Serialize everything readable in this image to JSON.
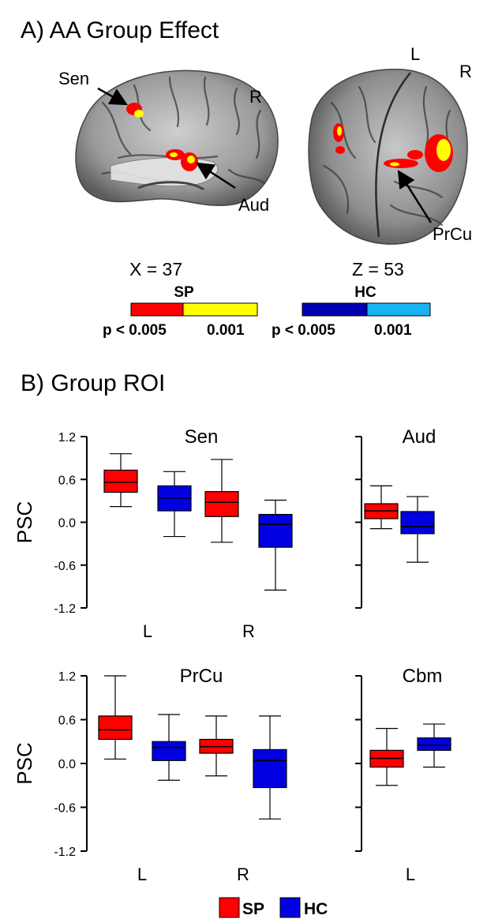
{
  "panel_a": {
    "heading": "A) AA Group Effect",
    "sagittal": {
      "labels": {
        "sen": "Sen",
        "aud": "Aud",
        "r": "R"
      },
      "coord": "X = 37"
    },
    "axial": {
      "labels": {
        "l": "L",
        "r": "R",
        "prcu": "PrCu"
      },
      "coord": "Z = 53"
    },
    "colorbars": [
      {
        "title": "SP",
        "ticks": [
          "p < 0.005",
          "0.001"
        ],
        "colors": [
          "#ff0000",
          "#ffff00"
        ]
      },
      {
        "title": "HC",
        "ticks": [
          "p < 0.005",
          "0.001"
        ],
        "colors": [
          "#0000b0",
          "#18b4f0"
        ]
      }
    ]
  },
  "panel_b": {
    "heading": "B) Group ROI"
  },
  "colors": {
    "SP": "#ff0000",
    "HC": "#0000e0"
  },
  "legend": [
    {
      "label": "SP",
      "color": "#ff0000"
    },
    {
      "label": "HC",
      "color": "#0000e0"
    }
  ],
  "chart_data": [
    {
      "type": "box",
      "title": "Sen",
      "ylabel": "PSC",
      "ylim": [
        -1.2,
        1.2
      ],
      "yticks": [
        "1.2",
        "0.6",
        "0.0",
        "-0.6",
        "-1.2"
      ],
      "categories": [
        "L",
        "R"
      ],
      "series": [
        {
          "name": "SP",
          "boxes": [
            {
              "min": 0.22,
              "q1": 0.42,
              "median": 0.56,
              "q3": 0.73,
              "max": 0.96
            },
            {
              "min": -0.28,
              "q1": 0.08,
              "median": 0.28,
              "q3": 0.43,
              "max": 0.88
            }
          ]
        },
        {
          "name": "HC",
          "boxes": [
            {
              "min": -0.2,
              "q1": 0.16,
              "median": 0.34,
              "q3": 0.51,
              "max": 0.71
            },
            {
              "min": -0.95,
              "q1": -0.35,
              "median": -0.03,
              "q3": 0.11,
              "max": 0.31
            }
          ]
        }
      ]
    },
    {
      "type": "box",
      "title": "Aud",
      "ylim": [
        -1.2,
        1.2
      ],
      "categories": [],
      "series": [
        {
          "name": "SP",
          "boxes": [
            {
              "min": -0.09,
              "q1": 0.05,
              "median": 0.16,
              "q3": 0.26,
              "max": 0.51
            }
          ]
        },
        {
          "name": "HC",
          "boxes": [
            {
              "min": -0.56,
              "q1": -0.16,
              "median": -0.06,
              "q3": 0.15,
              "max": 0.36
            }
          ]
        }
      ]
    },
    {
      "type": "box",
      "title": "PrCu",
      "ylabel": "PSC",
      "ylim": [
        -1.2,
        1.2
      ],
      "yticks": [
        "1.2",
        "0.6",
        "0.0",
        "-0.6",
        "-1.2"
      ],
      "categories": [
        "L",
        "R"
      ],
      "series": [
        {
          "name": "SP",
          "boxes": [
            {
              "min": 0.06,
              "q1": 0.33,
              "median": 0.46,
              "q3": 0.65,
              "max": 1.2
            },
            {
              "min": -0.17,
              "q1": 0.14,
              "median": 0.23,
              "q3": 0.33,
              "max": 0.65
            }
          ]
        },
        {
          "name": "HC",
          "boxes": [
            {
              "min": -0.23,
              "q1": 0.04,
              "median": 0.22,
              "q3": 0.3,
              "max": 0.67
            },
            {
              "min": -0.76,
              "q1": -0.33,
              "median": 0.04,
              "q3": 0.19,
              "max": 0.65
            }
          ]
        }
      ]
    },
    {
      "type": "box",
      "title": "Cbm",
      "ylim": [
        -1.2,
        1.2
      ],
      "categories": [
        "L"
      ],
      "series": [
        {
          "name": "SP",
          "boxes": [
            {
              "min": -0.3,
              "q1": -0.05,
              "median": 0.07,
              "q3": 0.18,
              "max": 0.48
            }
          ]
        },
        {
          "name": "HC",
          "boxes": [
            {
              "min": -0.05,
              "q1": 0.18,
              "median": 0.25,
              "q3": 0.35,
              "max": 0.54
            }
          ]
        }
      ]
    }
  ]
}
